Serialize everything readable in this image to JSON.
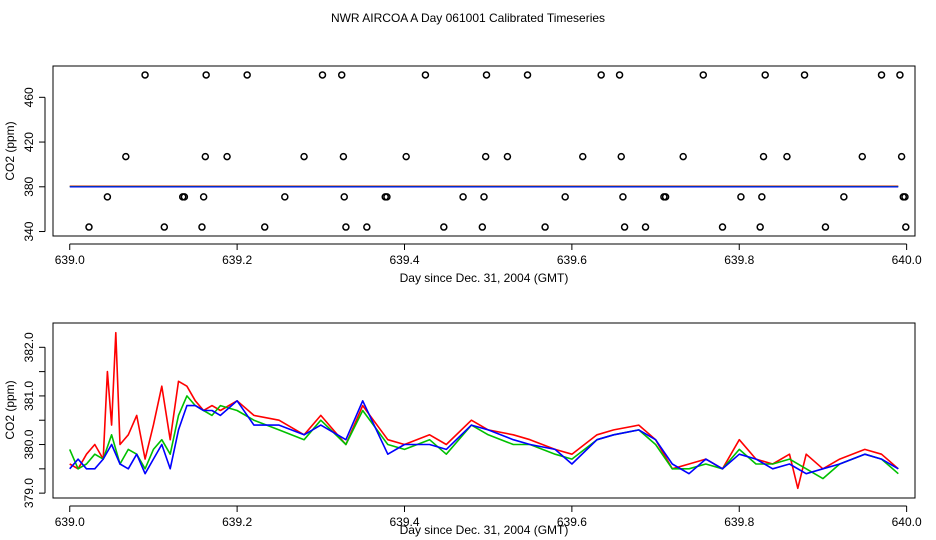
{
  "title": "NWR AIRCOA A  Day 061001  Calibrated Timeseries",
  "chart_data": [
    {
      "type": "scatter",
      "xlabel": "Day since Dec. 31, 2004 (GMT)",
      "ylabel": "CO2 (ppm)",
      "xlim": [
        638.98,
        640.01
      ],
      "ylim": [
        336,
        488
      ],
      "xticks": [
        639.0,
        639.2,
        639.4,
        639.6,
        639.8,
        640.0
      ],
      "xtick_labels": [
        "639.0",
        "639.2",
        "639.4",
        "639.6",
        "639.8",
        "640.0"
      ],
      "yticks": [
        340,
        380,
        420,
        460
      ],
      "ytick_labels": [
        "340",
        "380",
        "420",
        "460"
      ],
      "calibration_points": [
        {
          "x": 639.023,
          "y": 344
        },
        {
          "x": 639.045,
          "y": 371
        },
        {
          "x": 639.067,
          "y": 407
        },
        {
          "x": 639.09,
          "y": 480
        },
        {
          "x": 639.113,
          "y": 344
        },
        {
          "x": 639.135,
          "y": 371
        },
        {
          "x": 639.137,
          "y": 371
        },
        {
          "x": 639.158,
          "y": 344
        },
        {
          "x": 639.16,
          "y": 371
        },
        {
          "x": 639.162,
          "y": 407
        },
        {
          "x": 639.163,
          "y": 480
        },
        {
          "x": 639.188,
          "y": 407
        },
        {
          "x": 639.212,
          "y": 480
        },
        {
          "x": 639.233,
          "y": 344
        },
        {
          "x": 639.257,
          "y": 371
        },
        {
          "x": 639.28,
          "y": 407
        },
        {
          "x": 639.302,
          "y": 480
        },
        {
          "x": 639.325,
          "y": 480
        },
        {
          "x": 639.327,
          "y": 407
        },
        {
          "x": 639.328,
          "y": 371
        },
        {
          "x": 639.33,
          "y": 344
        },
        {
          "x": 639.355,
          "y": 344
        },
        {
          "x": 639.377,
          "y": 371
        },
        {
          "x": 639.379,
          "y": 371
        },
        {
          "x": 639.402,
          "y": 407
        },
        {
          "x": 639.425,
          "y": 480
        },
        {
          "x": 639.447,
          "y": 344
        },
        {
          "x": 639.47,
          "y": 371
        },
        {
          "x": 639.493,
          "y": 344
        },
        {
          "x": 639.495,
          "y": 371
        },
        {
          "x": 639.497,
          "y": 407
        },
        {
          "x": 639.498,
          "y": 480
        },
        {
          "x": 639.523,
          "y": 407
        },
        {
          "x": 639.547,
          "y": 480
        },
        {
          "x": 639.568,
          "y": 344
        },
        {
          "x": 639.592,
          "y": 371
        },
        {
          "x": 639.613,
          "y": 407
        },
        {
          "x": 639.635,
          "y": 480
        },
        {
          "x": 639.657,
          "y": 480
        },
        {
          "x": 639.659,
          "y": 407
        },
        {
          "x": 639.661,
          "y": 371
        },
        {
          "x": 639.663,
          "y": 344
        },
        {
          "x": 639.688,
          "y": 344
        },
        {
          "x": 639.71,
          "y": 371
        },
        {
          "x": 639.712,
          "y": 371
        },
        {
          "x": 639.733,
          "y": 407
        },
        {
          "x": 639.757,
          "y": 480
        },
        {
          "x": 639.78,
          "y": 344
        },
        {
          "x": 639.802,
          "y": 371
        },
        {
          "x": 639.825,
          "y": 344
        },
        {
          "x": 639.827,
          "y": 371
        },
        {
          "x": 639.829,
          "y": 407
        },
        {
          "x": 639.831,
          "y": 480
        },
        {
          "x": 639.857,
          "y": 407
        },
        {
          "x": 639.878,
          "y": 480
        },
        {
          "x": 639.903,
          "y": 344
        },
        {
          "x": 639.925,
          "y": 371
        },
        {
          "x": 639.947,
          "y": 407
        },
        {
          "x": 639.97,
          "y": 480
        },
        {
          "x": 639.992,
          "y": 480
        },
        {
          "x": 639.994,
          "y": 407
        },
        {
          "x": 639.996,
          "y": 371
        },
        {
          "x": 639.998,
          "y": 371
        },
        {
          "x": 639.999,
          "y": 344
        }
      ],
      "ambient_level": 380.3,
      "ambient_x_range": [
        639.0,
        639.99
      ],
      "series_colors": [
        "#ff0000",
        "#00c000",
        "#0000ff"
      ]
    },
    {
      "type": "line",
      "xlabel": "Day since Dec. 31, 2004 (GMT)",
      "ylabel": "CO2 (ppm)",
      "xlim": [
        638.98,
        640.01
      ],
      "ylim": [
        378.9,
        382.5
      ],
      "xticks": [
        639.0,
        639.2,
        639.4,
        639.6,
        639.8,
        640.0
      ],
      "xtick_labels": [
        "639.0",
        "639.2",
        "639.4",
        "639.6",
        "639.8",
        "640.0"
      ],
      "yticks": [
        379.0,
        379.5,
        380.0,
        380.5,
        381.0,
        381.5,
        382.0
      ],
      "ytick_labels": [
        "379.0",
        "",
        "380.0",
        "",
        "381.0",
        "",
        "382.0"
      ],
      "series": [
        {
          "color": "#ff0000",
          "x": [
            639.0,
            639.01,
            639.02,
            639.03,
            639.04,
            639.045,
            639.05,
            639.055,
            639.06,
            639.07,
            639.08,
            639.09,
            639.1,
            639.11,
            639.12,
            639.13,
            639.14,
            639.15,
            639.16,
            639.17,
            639.18,
            639.2,
            639.22,
            639.25,
            639.28,
            639.3,
            639.33,
            639.35,
            639.38,
            639.4,
            639.43,
            639.45,
            639.48,
            639.5,
            639.53,
            639.55,
            639.58,
            639.6,
            639.63,
            639.65,
            639.68,
            639.7,
            639.72,
            639.74,
            639.76,
            639.78,
            639.8,
            639.82,
            639.84,
            639.86,
            639.87,
            639.88,
            639.9,
            639.92,
            639.95,
            639.97,
            639.99
          ],
          "y": [
            379.6,
            379.5,
            379.8,
            380.0,
            379.7,
            381.5,
            380.4,
            382.3,
            380.0,
            380.2,
            380.6,
            379.7,
            380.4,
            381.2,
            380.1,
            381.3,
            381.2,
            380.9,
            380.7,
            380.8,
            380.7,
            380.9,
            380.6,
            380.5,
            380.2,
            380.6,
            380.0,
            380.8,
            380.1,
            380.0,
            380.2,
            380.0,
            380.5,
            380.3,
            380.2,
            380.1,
            379.9,
            379.8,
            380.2,
            380.3,
            380.4,
            380.1,
            379.5,
            379.6,
            379.7,
            379.5,
            380.1,
            379.7,
            379.6,
            379.8,
            379.1,
            379.8,
            379.5,
            379.7,
            379.9,
            379.8,
            379.5
          ]
        },
        {
          "color": "#00c000",
          "x": [
            639.0,
            639.01,
            639.02,
            639.03,
            639.04,
            639.05,
            639.06,
            639.07,
            639.08,
            639.09,
            639.1,
            639.11,
            639.12,
            639.13,
            639.14,
            639.15,
            639.16,
            639.17,
            639.18,
            639.2,
            639.22,
            639.25,
            639.28,
            639.3,
            639.33,
            639.35,
            639.38,
            639.4,
            639.43,
            639.45,
            639.48,
            639.5,
            639.53,
            639.55,
            639.58,
            639.6,
            639.63,
            639.65,
            639.68,
            639.7,
            639.72,
            639.74,
            639.76,
            639.78,
            639.8,
            639.82,
            639.84,
            639.86,
            639.88,
            639.9,
            639.92,
            639.95,
            639.97,
            639.99
          ],
          "y": [
            379.9,
            379.5,
            379.6,
            379.8,
            379.7,
            380.2,
            379.6,
            379.9,
            379.8,
            379.5,
            379.9,
            380.1,
            379.8,
            380.6,
            381.0,
            380.8,
            380.7,
            380.6,
            380.8,
            380.7,
            380.5,
            380.3,
            380.1,
            380.5,
            380.0,
            380.7,
            380.0,
            379.9,
            380.1,
            379.8,
            380.4,
            380.2,
            380.0,
            380.0,
            379.8,
            379.7,
            380.1,
            380.2,
            380.3,
            380.0,
            379.5,
            379.5,
            379.6,
            379.5,
            379.9,
            379.6,
            379.6,
            379.7,
            379.5,
            379.3,
            379.6,
            379.8,
            379.7,
            379.4
          ]
        },
        {
          "color": "#0000ff",
          "x": [
            639.0,
            639.01,
            639.02,
            639.03,
            639.04,
            639.05,
            639.06,
            639.07,
            639.08,
            639.09,
            639.1,
            639.11,
            639.12,
            639.13,
            639.14,
            639.15,
            639.16,
            639.17,
            639.18,
            639.2,
            639.22,
            639.25,
            639.28,
            639.3,
            639.33,
            639.35,
            639.38,
            639.4,
            639.43,
            639.45,
            639.48,
            639.5,
            639.53,
            639.55,
            639.58,
            639.6,
            639.63,
            639.65,
            639.68,
            639.7,
            639.72,
            639.74,
            639.76,
            639.78,
            639.8,
            639.82,
            639.84,
            639.86,
            639.88,
            639.9,
            639.92,
            639.95,
            639.97,
            639.99
          ],
          "y": [
            379.5,
            379.7,
            379.5,
            379.5,
            379.7,
            380.0,
            379.6,
            379.5,
            379.8,
            379.4,
            379.7,
            380.0,
            379.5,
            380.3,
            380.8,
            380.8,
            380.7,
            380.7,
            380.6,
            380.9,
            380.4,
            380.4,
            380.2,
            380.4,
            380.1,
            380.9,
            379.8,
            380.0,
            380.0,
            379.9,
            380.4,
            380.3,
            380.1,
            380.0,
            379.9,
            379.6,
            380.1,
            380.2,
            380.3,
            380.1,
            379.6,
            379.4,
            379.7,
            379.5,
            379.8,
            379.7,
            379.5,
            379.6,
            379.4,
            379.5,
            379.6,
            379.8,
            379.7,
            379.5
          ]
        }
      ]
    }
  ]
}
